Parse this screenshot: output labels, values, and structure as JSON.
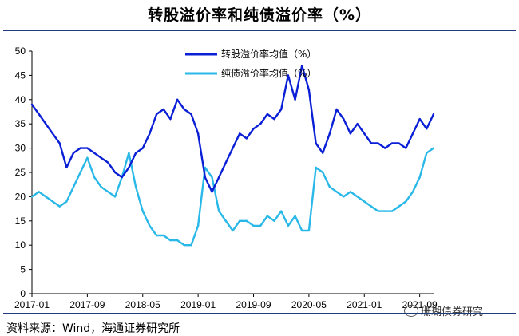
{
  "title": "转股溢价率和纯债溢价率（%）",
  "source": "资料来源：Wind，海通证券研究所",
  "watermark": "珊瑚债券研究",
  "chart_data": {
    "type": "line",
    "title": "转股溢价率和纯债溢价率（%）",
    "xlabel": "",
    "ylabel": "",
    "ylim": [
      0,
      50
    ],
    "yticks": [
      0,
      5,
      10,
      15,
      20,
      25,
      30,
      35,
      40,
      45,
      50
    ],
    "xticks": [
      "2017-01",
      "2017-09",
      "2018-05",
      "2019-01",
      "2019-09",
      "2020-05",
      "2021-01",
      "2021-09"
    ],
    "grid": false,
    "legend_position": "top-center",
    "series": [
      {
        "name": "转股溢价率均值（%）",
        "color": "#0a1fd6",
        "x": [
          "2017-01",
          "2017-02",
          "2017-03",
          "2017-04",
          "2017-05",
          "2017-06",
          "2017-07",
          "2017-08",
          "2017-09",
          "2017-10",
          "2017-11",
          "2017-12",
          "2018-01",
          "2018-02",
          "2018-03",
          "2018-04",
          "2018-05",
          "2018-06",
          "2018-07",
          "2018-08",
          "2018-09",
          "2018-10",
          "2018-11",
          "2018-12",
          "2019-01",
          "2019-02",
          "2019-03",
          "2019-04",
          "2019-05",
          "2019-06",
          "2019-07",
          "2019-08",
          "2019-09",
          "2019-10",
          "2019-11",
          "2019-12",
          "2020-01",
          "2020-02",
          "2020-03",
          "2020-04",
          "2020-05",
          "2020-06",
          "2020-07",
          "2020-08",
          "2020-09",
          "2020-10",
          "2020-11",
          "2020-12",
          "2021-01",
          "2021-02",
          "2021-03",
          "2021-04",
          "2021-05",
          "2021-06",
          "2021-07",
          "2021-08",
          "2021-09",
          "2021-10",
          "2021-11"
        ],
        "values": [
          39,
          37,
          35,
          33,
          31,
          26,
          29,
          30,
          30,
          29,
          28,
          27,
          25,
          24,
          26,
          29,
          30,
          33,
          37,
          38,
          36,
          40,
          38,
          37,
          33,
          24,
          21,
          24,
          27,
          30,
          33,
          32,
          34,
          35,
          37,
          36,
          38,
          45,
          40,
          47,
          42,
          31,
          29,
          33,
          38,
          36,
          33,
          35,
          33,
          31,
          31,
          30,
          31,
          31,
          30,
          33,
          36,
          34,
          37
        ]
      },
      {
        "name": "纯债溢价率均值（%）",
        "color": "#29b8e8",
        "x": [
          "2017-01",
          "2017-02",
          "2017-03",
          "2017-04",
          "2017-05",
          "2017-06",
          "2017-07",
          "2017-08",
          "2017-09",
          "2017-10",
          "2017-11",
          "2017-12",
          "2018-01",
          "2018-02",
          "2018-03",
          "2018-04",
          "2018-05",
          "2018-06",
          "2018-07",
          "2018-08",
          "2018-09",
          "2018-10",
          "2018-11",
          "2018-12",
          "2019-01",
          "2019-02",
          "2019-03",
          "2019-04",
          "2019-05",
          "2019-06",
          "2019-07",
          "2019-08",
          "2019-09",
          "2019-10",
          "2019-11",
          "2019-12",
          "2020-01",
          "2020-02",
          "2020-03",
          "2020-04",
          "2020-05",
          "2020-06",
          "2020-07",
          "2020-08",
          "2020-09",
          "2020-10",
          "2020-11",
          "2020-12",
          "2021-01",
          "2021-02",
          "2021-03",
          "2021-04",
          "2021-05",
          "2021-06",
          "2021-07",
          "2021-08",
          "2021-09",
          "2021-10",
          "2021-11"
        ],
        "values": [
          20,
          21,
          20,
          19,
          18,
          19,
          22,
          25,
          28,
          24,
          22,
          21,
          20,
          24,
          29,
          22,
          17,
          14,
          12,
          12,
          11,
          11,
          10,
          10,
          14,
          26,
          24,
          17,
          15,
          13,
          15,
          15,
          14,
          14,
          16,
          15,
          17,
          14,
          16,
          13,
          13,
          26,
          25,
          22,
          21,
          20,
          21,
          20,
          19,
          18,
          17,
          17,
          17,
          18,
          19,
          21,
          24,
          29,
          30
        ]
      }
    ]
  }
}
